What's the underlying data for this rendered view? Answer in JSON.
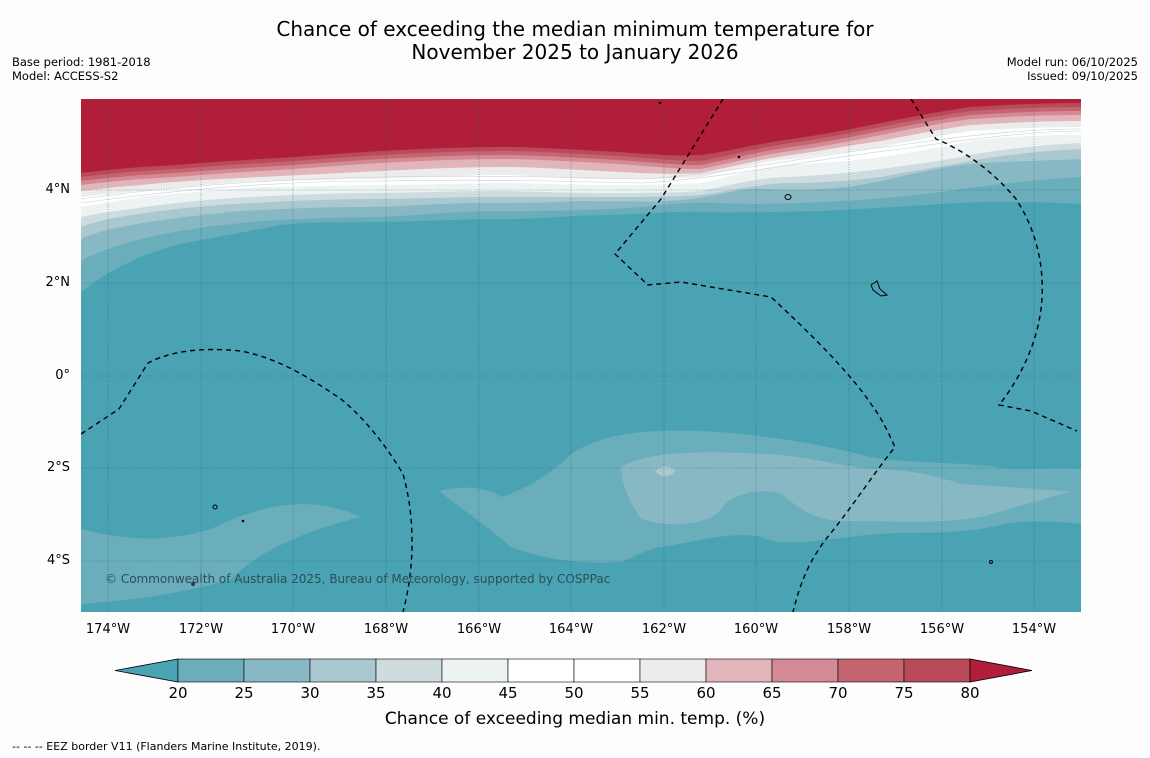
{
  "title": {
    "line1": "Chance of exceeding the median minimum temperature for",
    "line2": "November 2025 to January 2026"
  },
  "meta": {
    "base_period": "Base period: 1981-2018",
    "model": "Model: ACCESS-S2",
    "model_run": "Model run: 06/10/2025",
    "issued": "Issued: 09/10/2025"
  },
  "map": {
    "lat_labels": [
      "4°N",
      "2°N",
      "0°",
      "2°S",
      "4°S"
    ],
    "lon_labels": [
      "174°W",
      "172°W",
      "170°W",
      "168°W",
      "166°W",
      "164°W",
      "162°W",
      "160°W",
      "158°W",
      "156°W",
      "154°W"
    ],
    "credit": "© Commonwealth of Australia 2025, Bureau of Meteorology, supported by COSPPac"
  },
  "colorbar": {
    "ticks": [
      "20",
      "25",
      "30",
      "35",
      "40",
      "45",
      "50",
      "55",
      "60",
      "65",
      "70",
      "75",
      "80"
    ],
    "colors": [
      "#6aadbb",
      "#88b8c4",
      "#aac8cf",
      "#cedbdf",
      "#edf2f3",
      "#ffffff",
      "#ffffff",
      "#ececec",
      "#e2b5bb",
      "#d48a95",
      "#c5656f",
      "#b94a5a"
    ],
    "under_color": "#4aa3b2",
    "over_color": "#b01e3a",
    "title": "Chance of exceeding median min. temp. (%)"
  },
  "footnote": "--  --  -- EEZ border V11 (Flanders Marine Institute, 2019)."
}
